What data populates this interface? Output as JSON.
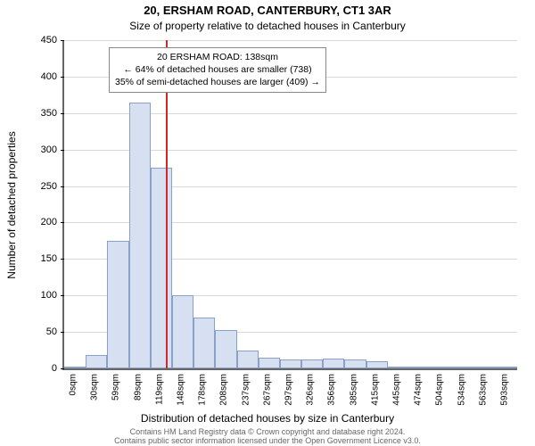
{
  "title_main": "20, ERSHAM ROAD, CANTERBURY, CT1 3AR",
  "title_sub": "Size of property relative to detached houses in Canterbury",
  "ylabel": "Number of detached properties",
  "xlabel": "Distribution of detached houses by size in Canterbury",
  "attribution_line1": "Contains HM Land Registry data © Crown copyright and database right 2024.",
  "attribution_line2": "Contains public sector information licensed under the Open Government Licence v3.0.",
  "chart": {
    "type": "histogram",
    "ylim": [
      0,
      450
    ],
    "ytick_step": 50,
    "categories": [
      "0sqm",
      "30sqm",
      "59sqm",
      "89sqm",
      "119sqm",
      "148sqm",
      "178sqm",
      "208sqm",
      "237sqm",
      "267sqm",
      "297sqm",
      "326sqm",
      "356sqm",
      "385sqm",
      "415sqm",
      "445sqm",
      "474sqm",
      "504sqm",
      "534sqm",
      "563sqm",
      "593sqm"
    ],
    "values": [
      0,
      18,
      175,
      365,
      275,
      100,
      70,
      52,
      25,
      15,
      12,
      12,
      13,
      12,
      10,
      3,
      2,
      2,
      1,
      1,
      1
    ],
    "bar_fill": "#d6e0f0",
    "bar_border": "#8aa0c8",
    "ref_line_color": "#d02828",
    "ref_bin_index_after": 4,
    "grid_color": "#666666",
    "background": "#ffffff",
    "tick_fontsize": 10,
    "label_fontsize": 12,
    "title_fontsize": 13
  },
  "annotation": {
    "line1": "20 ERSHAM ROAD: 138sqm",
    "line2": "← 64% of detached houses are smaller (738)",
    "line3": "35% of semi-detached houses are larger (409) →"
  }
}
